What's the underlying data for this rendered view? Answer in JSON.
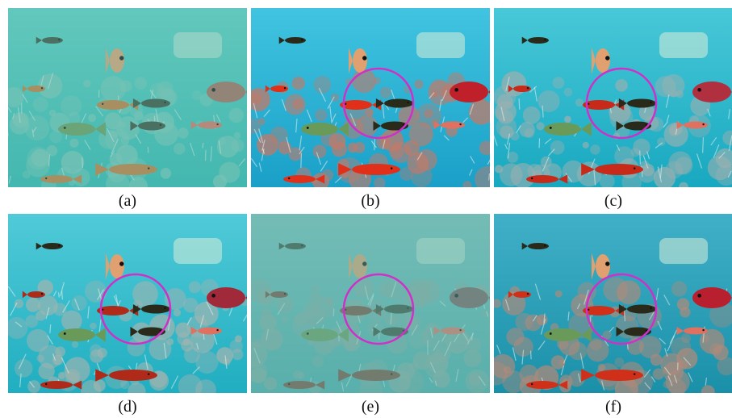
{
  "figure": {
    "panels": [
      {
        "id": "a",
        "caption": "(a)",
        "circle": false,
        "palette": {
          "water": "#2fb8b0",
          "water2": "#5fd0c4",
          "coral": "#7fc8b8",
          "fishA": "#c87a3a",
          "fishB": "#3a4a3a",
          "fishC": "#a86a5a",
          "haze": 0.35
        }
      },
      {
        "id": "b",
        "caption": "(b)",
        "circle": true,
        "palette": {
          "water": "#1aa0c8",
          "water2": "#40c4e0",
          "coral": "#c07a6a",
          "fishA": "#e0301a",
          "fishB": "#2a2a1a",
          "fishC": "#c0202a",
          "haze": 0.0
        }
      },
      {
        "id": "c",
        "caption": "(c)",
        "circle": true,
        "palette": {
          "water": "#18a8c0",
          "water2": "#48c8d8",
          "coral": "#9ab0b0",
          "fishA": "#c82a1a",
          "fishB": "#2a2a1a",
          "fishC": "#b03040",
          "haze": 0.0
        }
      },
      {
        "id": "d",
        "caption": "(d)",
        "circle": true,
        "palette": {
          "water": "#20aec0",
          "water2": "#50cad8",
          "coral": "#a0b4b0",
          "fishA": "#b02a1a",
          "fishB": "#2a2a1a",
          "fishC": "#a02a3a",
          "haze": 0.0
        }
      },
      {
        "id": "e",
        "caption": "(e)",
        "circle": true,
        "palette": {
          "water": "#4aa8a8",
          "water2": "#7cc0bc",
          "coral": "#8aa8a0",
          "fishA": "#7a4a3a",
          "fishB": "#3a4a3a",
          "fishC": "#7a5a5a",
          "haze": 0.45
        }
      },
      {
        "id": "f",
        "caption": "(f)",
        "circle": true,
        "palette": {
          "water": "#1a90a8",
          "water2": "#40b0c8",
          "coral": "#b08a7a",
          "fishA": "#d0301a",
          "fishB": "#2a2a1a",
          "fishC": "#b82030",
          "haze": 0.0
        }
      }
    ],
    "circle_color": "#d030c8"
  }
}
